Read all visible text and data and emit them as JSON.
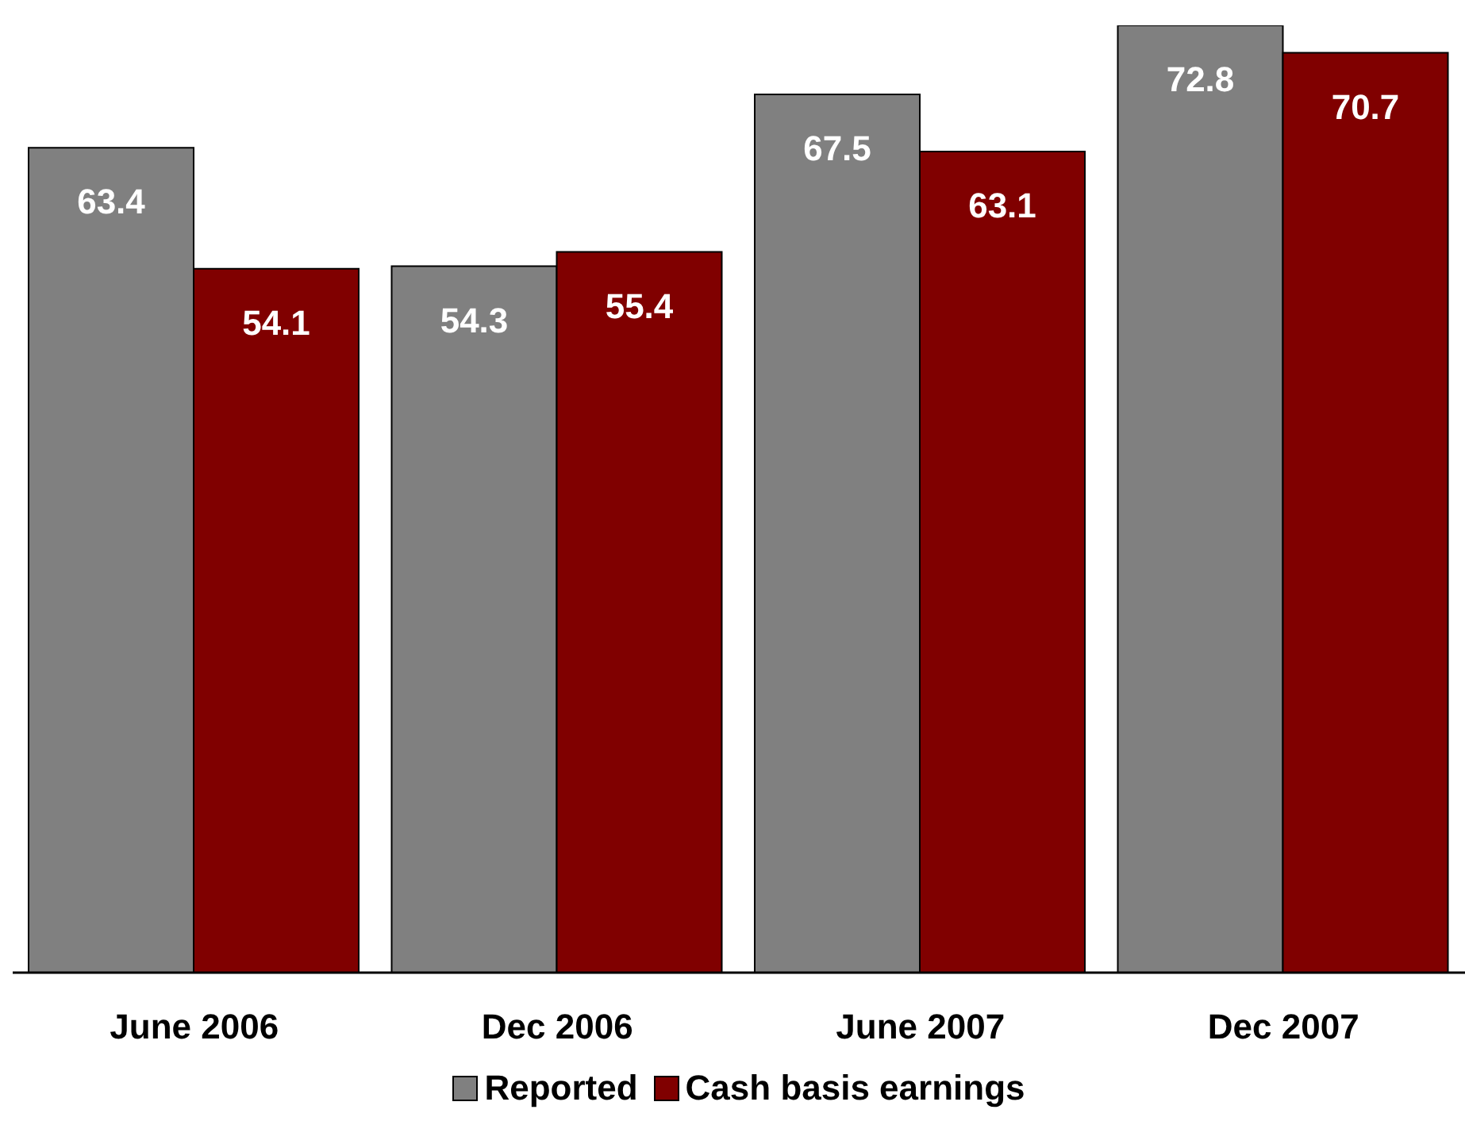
{
  "chart_data": {
    "type": "bar",
    "categories": [
      "June 2006",
      "Dec 2006",
      "June 2007",
      "Dec 2007"
    ],
    "series": [
      {
        "name": "Reported",
        "color": "#808080",
        "values": [
          63.4,
          54.3,
          67.5,
          72.8
        ]
      },
      {
        "name": "Cash basis earnings",
        "color": "#800000",
        "values": [
          54.1,
          55.4,
          63.1,
          70.7
        ]
      }
    ],
    "data_labels": true,
    "legend": "bottom"
  }
}
